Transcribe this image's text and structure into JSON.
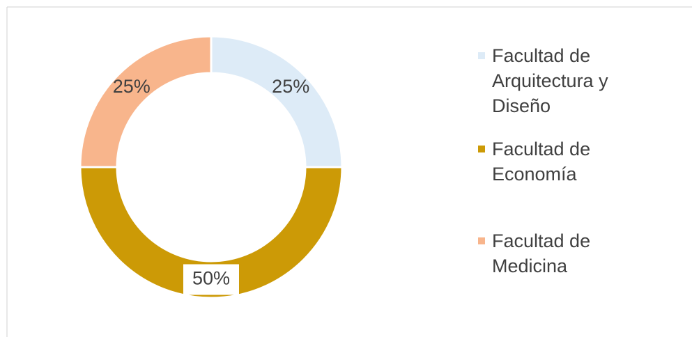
{
  "chart_data": {
    "type": "donut",
    "categories": [
      "Facultad de Arquitectura y Diseño",
      "Facultad de Economía",
      "Facultad de Medicina"
    ],
    "values": [
      25,
      50,
      25
    ],
    "value_labels": [
      "25%",
      "50%",
      "25%"
    ],
    "colors": [
      "#ddebf7",
      "#cc9a06",
      "#f8b58c"
    ],
    "legend": "right"
  }
}
